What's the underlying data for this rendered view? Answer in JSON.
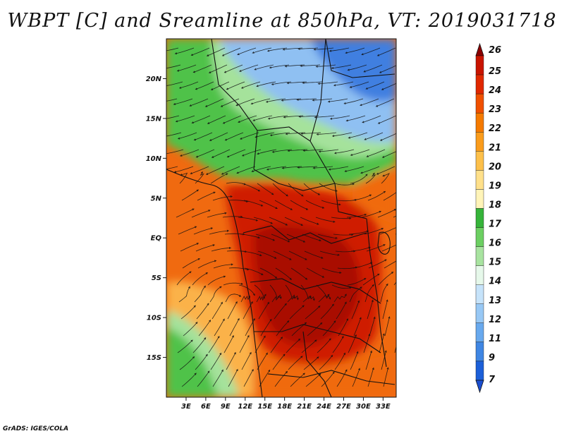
{
  "title": "WBPT [C] and Sreamline at 850hPa, VT: 2019031718",
  "credit": "GrADS: IGES/COLA",
  "map": {
    "lon_range": [
      0,
      35
    ],
    "lat_range": [
      -20,
      25
    ],
    "x_ticks": [
      {
        "lon": 3,
        "label": "3E"
      },
      {
        "lon": 6,
        "label": "6E"
      },
      {
        "lon": 9,
        "label": "9E"
      },
      {
        "lon": 12,
        "label": "12E"
      },
      {
        "lon": 15,
        "label": "15E"
      },
      {
        "lon": 18,
        "label": "18E"
      },
      {
        "lon": 21,
        "label": "21E"
      },
      {
        "lon": 24,
        "label": "24E"
      },
      {
        "lon": 27,
        "label": "27E"
      },
      {
        "lon": 30,
        "label": "30E"
      },
      {
        "lon": 33,
        "label": "33E"
      }
    ],
    "y_ticks": [
      {
        "lat": 20,
        "label": "20N"
      },
      {
        "lat": 15,
        "label": "15N"
      },
      {
        "lat": 10,
        "label": "10N"
      },
      {
        "lat": 5,
        "label": "5N"
      },
      {
        "lat": 0,
        "label": "EQ"
      },
      {
        "lat": -5,
        "label": "5S"
      },
      {
        "lat": -10,
        "label": "10S"
      },
      {
        "lat": -15,
        "label": "15S"
      }
    ]
  },
  "colorbar": {
    "levels": [
      {
        "label": "26",
        "color": "#a00000"
      },
      {
        "label": "25",
        "color": "#c81400"
      },
      {
        "label": "24",
        "color": "#e02800"
      },
      {
        "label": "23",
        "color": "#f05000"
      },
      {
        "label": "22",
        "color": "#f57a00"
      },
      {
        "label": "21",
        "color": "#fa9c1c"
      },
      {
        "label": "20",
        "color": "#fdc04a"
      },
      {
        "label": "19",
        "color": "#ffe08a"
      },
      {
        "label": "18",
        "color": "#fff4b8"
      },
      {
        "label": "17",
        "color": "#36b43a"
      },
      {
        "label": "16",
        "color": "#6ccf62"
      },
      {
        "label": "15",
        "color": "#a8e3a0"
      },
      {
        "label": "14",
        "color": "#e6f8ea"
      },
      {
        "label": "13",
        "color": "#c6e3fa"
      },
      {
        "label": "12",
        "color": "#98c8f5"
      },
      {
        "label": "11",
        "color": "#68a9ee"
      },
      {
        "label": "9",
        "color": "#3f86e3"
      },
      {
        "label": "7",
        "color": "#1c5fd8"
      }
    ],
    "top_color": "#8c0000",
    "bottom_color": "#1a4ed0"
  },
  "fields": {
    "blue_north": "#8fc0f2",
    "blue_north_deep": "#3f7fe0",
    "green_band": "#4fc24a",
    "green_light": "#a5e29b",
    "orange_west": "#f06a10",
    "orange_light": "#fbb24a",
    "red_center": "#cf1f00",
    "red_deep": "#a90a00"
  }
}
